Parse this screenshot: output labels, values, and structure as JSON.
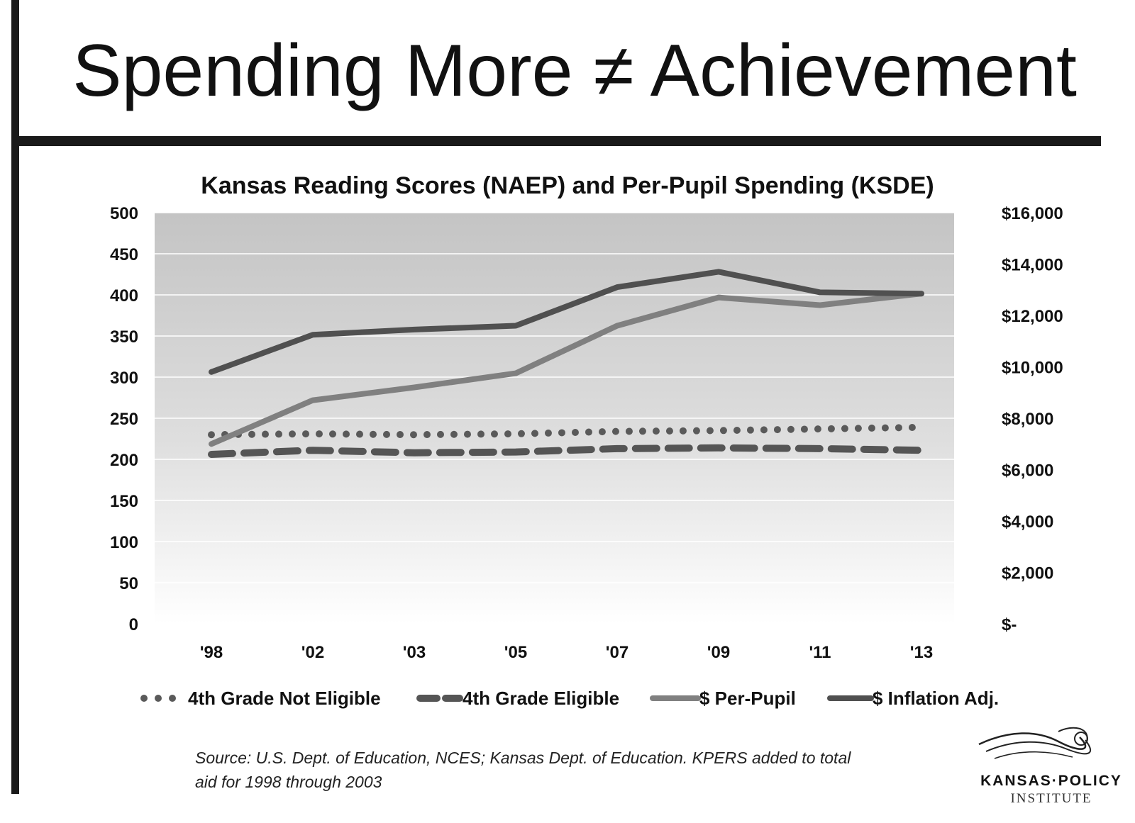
{
  "slide": {
    "title": "Spending More ≠ Achievement"
  },
  "chart_data": {
    "type": "line",
    "title": "Kansas Reading Scores (NAEP) and Per-Pupil Spending (KSDE)",
    "categories": [
      "'98",
      "'02",
      "'03",
      "'05",
      "'07",
      "'09",
      "'11",
      "'13"
    ],
    "y_left": {
      "ticks": [
        "500",
        "450",
        "400",
        "350",
        "300",
        "250",
        "200",
        "150",
        "100",
        "50",
        "0"
      ],
      "range": [
        0,
        500
      ]
    },
    "y_right": {
      "ticks": [
        "$16,000",
        "$14,000",
        "$12,000",
        "$10,000",
        "$8,000",
        "$6,000",
        "$4,000",
        "$2,000",
        "$-"
      ],
      "range": [
        0,
        16000
      ]
    },
    "series": [
      {
        "name": "4th Grade Not Eligible",
        "axis": "left",
        "style": "dotted",
        "color": "#5a5a5a",
        "values": [
          230,
          231,
          230,
          231,
          234,
          235,
          237,
          239
        ]
      },
      {
        "name": "4th Grade Eligible",
        "axis": "left",
        "style": "dashed",
        "color": "#555555",
        "values": [
          206,
          211,
          208,
          209,
          213,
          214,
          213,
          211
        ]
      },
      {
        "name": "$ Per-Pupil",
        "axis": "right",
        "style": "solid",
        "color": "#808080",
        "values": [
          7000,
          8700,
          9200,
          9750,
          11600,
          12700,
          12400,
          12850
        ]
      },
      {
        "name": "$ Inflation Adj.",
        "axis": "right",
        "style": "solid",
        "color": "#505050",
        "values": [
          9800,
          11250,
          11450,
          11600,
          13100,
          13700,
          12900,
          12850
        ]
      }
    ],
    "grid": true,
    "legend_position": "bottom"
  },
  "source_note": {
    "line1": "Source: U.S. Dept. of Education, NCES; Kansas Dept. of Education.  KPERS added to total",
    "line2": "aid for 1998 through 2003"
  },
  "logo": {
    "line1": "KANSAS·POLICY",
    "line2": "INSTITUTE"
  }
}
